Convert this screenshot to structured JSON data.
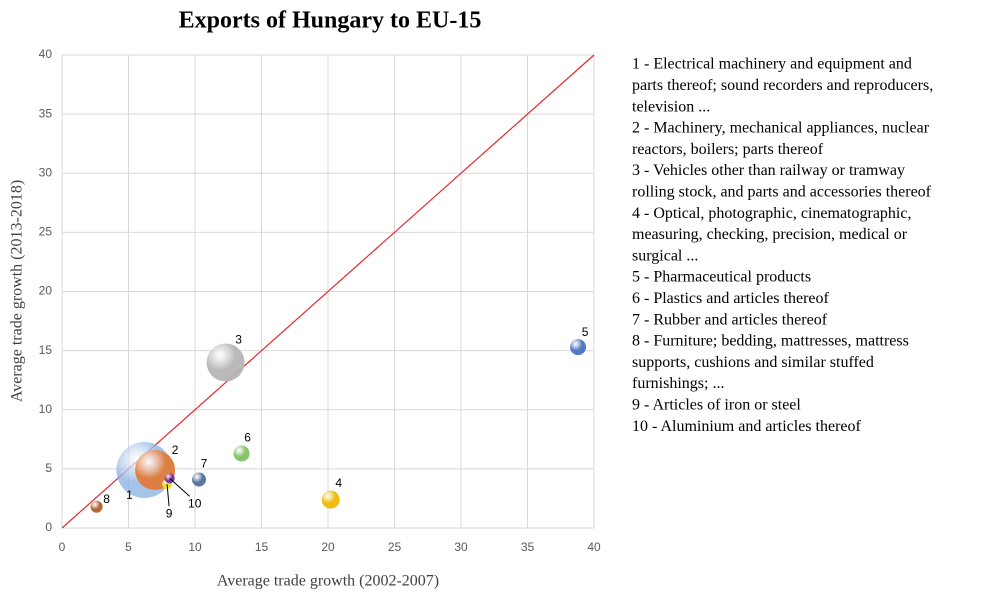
{
  "chart_data": {
    "type": "bubble",
    "title": "Exports of Hungary to EU-15",
    "xlabel": "Average trade growth (2002-2007)",
    "ylabel": "Average trade growth (2013-2018)",
    "xlim": [
      0,
      40
    ],
    "ylim": [
      0,
      40
    ],
    "xticks": [
      0,
      5,
      10,
      15,
      20,
      25,
      30,
      35,
      40
    ],
    "yticks": [
      0,
      5,
      10,
      15,
      20,
      25,
      30,
      35,
      40
    ],
    "grid": true,
    "point_labels": [
      "1",
      "2",
      "3",
      "4",
      "5",
      "6",
      "7",
      "8",
      "9",
      "10"
    ],
    "x": [
      6.2,
      7.0,
      12.3,
      20.2,
      38.8,
      13.5,
      10.3,
      2.6,
      7.9,
      8.1
    ],
    "values": [
      4.9,
      4.9,
      14.0,
      2.4,
      15.3,
      6.3,
      4.1,
      1.8,
      3.7,
      4.2
    ],
    "sizes": [
      784,
      400,
      361,
      81,
      64,
      64,
      49,
      36,
      25,
      25
    ],
    "colors": [
      "#8fb4e3",
      "#e07b39",
      "#b5b5b5",
      "#f0b800",
      "#4a72c4",
      "#7fbf5f",
      "#4f6f9f",
      "#b06030",
      "#f0e020",
      "#7030a0"
    ],
    "reference_line": {
      "x": [
        0,
        40
      ],
      "y": [
        0,
        40
      ],
      "color": "#e8282b"
    },
    "legend": [
      [
        "1 - Electrical machinery and equipment and",
        "parts thereof; sound recorders and reproducers,",
        "television ..."
      ],
      [
        "2 - Machinery, mechanical appliances, nuclear",
        "reactors, boilers; parts thereof"
      ],
      [
        "3 - Vehicles other than railway or tramway",
        "rolling stock, and parts and accessories thereof"
      ],
      [
        "4 - Optical, photographic, cinematographic,",
        "measuring, checking, precision, medical or",
        "surgical ..."
      ],
      [
        "5 - Pharmaceutical products"
      ],
      [
        "6 - Plastics and articles thereof"
      ],
      [
        "7 - Rubber and articles thereof"
      ],
      [
        "8 - Furniture; bedding, mattresses, mattress",
        "supports, cushions and similar stuffed",
        "furnishings; ..."
      ],
      [
        "9 - Articles of iron or steel"
      ],
      [
        "10 - Aluminium and articles thereof"
      ]
    ]
  }
}
